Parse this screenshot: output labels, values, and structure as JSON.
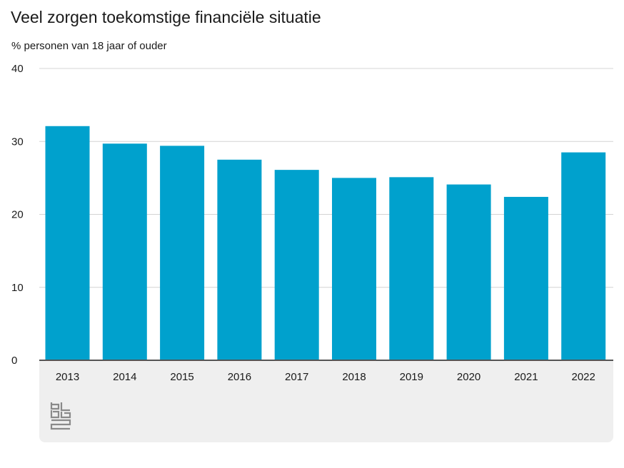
{
  "chart_data": {
    "type": "bar",
    "title": "Veel zorgen toekomstige financiële situatie",
    "subtitle": "% personen van 18 jaar of ouder",
    "categories": [
      "2013",
      "2014",
      "2015",
      "2016",
      "2017",
      "2018",
      "2019",
      "2020",
      "2021",
      "2022"
    ],
    "values": [
      32.1,
      29.7,
      29.4,
      27.5,
      26.1,
      25.0,
      25.1,
      24.1,
      22.4,
      28.5
    ],
    "ylim": [
      0,
      40
    ],
    "yticks": [
      "0",
      "10",
      "20",
      "30",
      "40"
    ],
    "grid": true,
    "bar_color": "#00a1cd",
    "xlabel": "",
    "ylabel": ""
  },
  "logo": {
    "name": "cbs-logo",
    "text": "cbs"
  }
}
